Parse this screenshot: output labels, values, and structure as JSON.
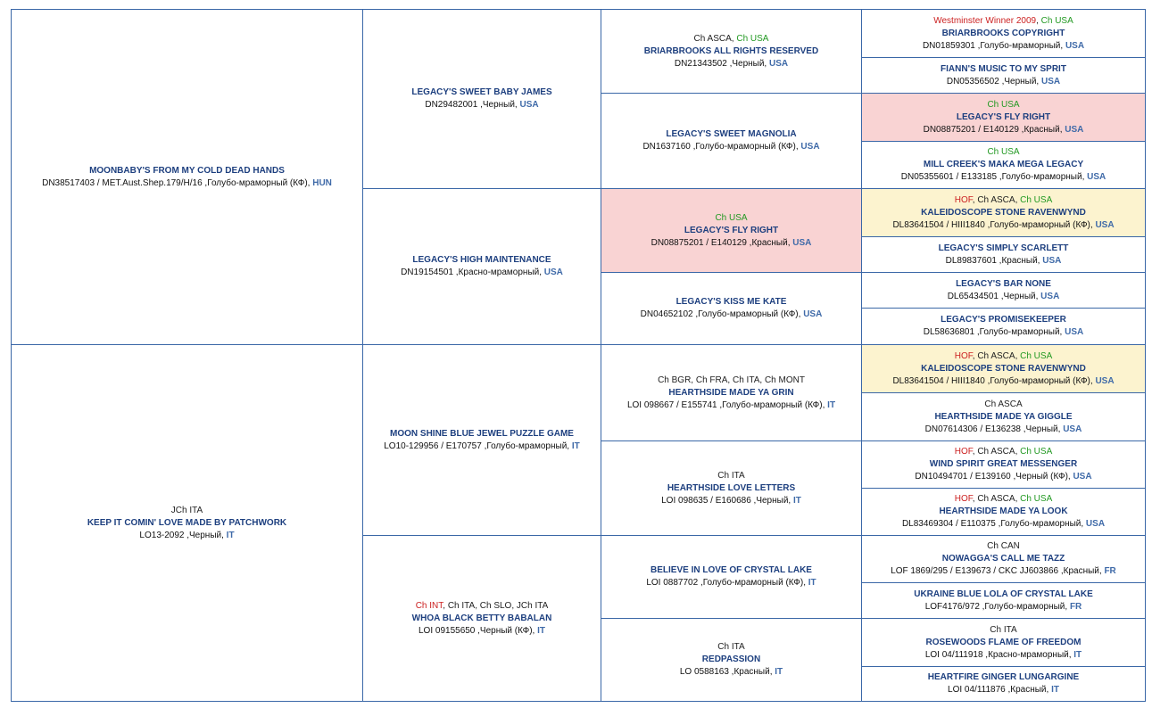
{
  "dogs": {
    "g1_1": {
      "titles": [],
      "name": "MOONBABY'S FROM MY COLD DEAD HANDS",
      "reg": "DN38517403 / MET.Aust.Shep.179/H/16 ,Голубо-мраморный (КФ), ",
      "country": "HUN"
    },
    "g1_2": {
      "titles": [
        {
          "t": "JCh ITA",
          "c": "black"
        }
      ],
      "name": "KEEP IT COMIN' LOVE MADE BY PATCHWORK",
      "reg": "LO13-2092 ,Черный, ",
      "country": "IT"
    },
    "g2_1": {
      "titles": [],
      "name": "LEGACY'S SWEET BABY JAMES",
      "reg": "DN29482001 ,Черный, ",
      "country": "USA"
    },
    "g2_2": {
      "titles": [],
      "name": "LEGACY'S HIGH MAINTENANCE",
      "reg": "DN19154501 ,Красно-мраморный, ",
      "country": "USA"
    },
    "g2_3": {
      "titles": [],
      "name": "MOON SHINE BLUE JEWEL PUZZLE GAME",
      "reg": "LO10-129956 / E170757 ,Голубо-мраморный, ",
      "country": "IT"
    },
    "g2_4": {
      "titles": [
        {
          "t": "Ch INT",
          "c": "red"
        },
        {
          "t": "Ch ITA",
          "c": "black"
        },
        {
          "t": "Ch SLO",
          "c": "black"
        },
        {
          "t": "JCh ITA",
          "c": "black"
        }
      ],
      "name": "WHOA BLACK BETTY BABALAN",
      "reg": "LOI 09155650 ,Черный (КФ), ",
      "country": "IT"
    },
    "g3_1": {
      "titles": [
        {
          "t": "Ch ASCA",
          "c": "black"
        },
        {
          "t": "Ch USA",
          "c": "green"
        }
      ],
      "name": "BRIARBROOKS ALL RIGHTS RESERVED",
      "reg": "DN21343502 ,Черный, ",
      "country": "USA"
    },
    "g3_2": {
      "titles": [],
      "name": "LEGACY'S SWEET MAGNOLIA",
      "reg": "DN1637160 ,Голубо-мраморный (КФ), ",
      "country": "USA"
    },
    "g3_3": {
      "titles": [
        {
          "t": "Ch USA",
          "c": "green"
        }
      ],
      "name": "LEGACY'S FLY RIGHT",
      "reg": "DN08875201 / E140129 ,Красный, ",
      "country": "USA"
    },
    "g3_4": {
      "titles": [],
      "name": "LEGACY'S KISS ME KATE",
      "reg": "DN04652102 ,Голубо-мраморный (КФ), ",
      "country": "USA"
    },
    "g3_5": {
      "titles": [
        {
          "t": "Ch BGR",
          "c": "black"
        },
        {
          "t": "Ch FRA",
          "c": "black"
        },
        {
          "t": "Ch ITA",
          "c": "black"
        },
        {
          "t": "Ch MONT",
          "c": "black"
        }
      ],
      "name": "HEARTHSIDE MADE YA GRIN",
      "reg": "LOI 098667 / E155741 ,Голубо-мраморный (КФ), ",
      "country": "IT"
    },
    "g3_6": {
      "titles": [
        {
          "t": "Ch ITA",
          "c": "black"
        }
      ],
      "name": "HEARTHSIDE LOVE LETTERS",
      "reg": "LOI 098635 / E160686 ,Черный, ",
      "country": "IT"
    },
    "g3_7": {
      "titles": [],
      "name": "BELIEVE IN LOVE OF CRYSTAL LAKE",
      "reg": "LOI 0887702 ,Голубо-мраморный (КФ), ",
      "country": "IT"
    },
    "g3_8": {
      "titles": [
        {
          "t": "Ch ITA",
          "c": "black"
        }
      ],
      "name": "REDPASSION",
      "reg": "LO 0588163 ,Красный, ",
      "country": "IT"
    },
    "g4_1": {
      "titles": [
        {
          "t": "Westminster Winner 2009",
          "c": "red"
        },
        {
          "t": "Ch USA",
          "c": "green"
        }
      ],
      "name": "BRIARBROOKS COPYRIGHT",
      "reg": "DN01859301 ,Голубо-мраморный, ",
      "country": "USA"
    },
    "g4_2": {
      "titles": [],
      "name": "FIANN'S MUSIC TO MY SPRIT",
      "reg": "DN05356502 ,Черный, ",
      "country": "USA"
    },
    "g4_3": {
      "titles": [
        {
          "t": "Ch USA",
          "c": "green"
        }
      ],
      "name": "LEGACY'S FLY RIGHT",
      "reg": "DN08875201 / E140129 ,Красный, ",
      "country": "USA"
    },
    "g4_4": {
      "titles": [
        {
          "t": "Ch USA",
          "c": "green"
        }
      ],
      "name": "MILL CREEK'S MAKA MEGA LEGACY",
      "reg": "DN05355601 / E133185 ,Голубо-мраморный, ",
      "country": "USA"
    },
    "g4_5": {
      "titles": [
        {
          "t": "HOF",
          "c": "red"
        },
        {
          "t": "Ch ASCA",
          "c": "black"
        },
        {
          "t": "Ch USA",
          "c": "green"
        }
      ],
      "name": "KALEIDOSCOPE STONE RAVENWYND",
      "reg": "DL83641504 / HIII1840 ,Голубо-мраморный (КФ), ",
      "country": "USA"
    },
    "g4_6": {
      "titles": [],
      "name": "LEGACY'S SIMPLY SCARLETT",
      "reg": "DL89837601 ,Красный, ",
      "country": "USA"
    },
    "g4_7": {
      "titles": [],
      "name": "LEGACY'S BAR NONE",
      "reg": "DL65434501 ,Черный, ",
      "country": "USA"
    },
    "g4_8": {
      "titles": [],
      "name": "LEGACY'S PROMISEKEEPER",
      "reg": "DL58636801 ,Голубо-мраморный, ",
      "country": "USA"
    },
    "g4_9": {
      "titles": [
        {
          "t": "HOF",
          "c": "red"
        },
        {
          "t": "Ch ASCA",
          "c": "black"
        },
        {
          "t": "Ch USA",
          "c": "green"
        }
      ],
      "name": "KALEIDOSCOPE STONE RAVENWYND",
      "reg": "DL83641504 / HIII1840 ,Голубо-мраморный (КФ), ",
      "country": "USA"
    },
    "g4_10": {
      "titles": [
        {
          "t": "Ch ASCA",
          "c": "black"
        }
      ],
      "name": "HEARTHSIDE MADE YA GIGGLE",
      "reg": "DN07614306 / E136238 ,Черный, ",
      "country": "USA"
    },
    "g4_11": {
      "titles": [
        {
          "t": "HOF",
          "c": "red"
        },
        {
          "t": "Ch ASCA",
          "c": "black"
        },
        {
          "t": "Ch USA",
          "c": "green"
        }
      ],
      "name": "WIND SPIRIT GREAT MESSENGER",
      "reg": "DN10494701 / E139160 ,Черный (КФ), ",
      "country": "USA"
    },
    "g4_12": {
      "titles": [
        {
          "t": "HOF",
          "c": "red"
        },
        {
          "t": "Ch ASCA",
          "c": "black"
        },
        {
          "t": "Ch USA",
          "c": "green"
        }
      ],
      "name": "HEARTHSIDE MADE YA LOOK",
      "reg": "DL83469304 / E110375 ,Голубо-мраморный, ",
      "country": "USA"
    },
    "g4_13": {
      "titles": [
        {
          "t": "Ch CAN",
          "c": "black"
        }
      ],
      "name": "NOWAGGA'S CALL ME TAZZ",
      "reg": "LOF 1869/295 / E139673 / CKC JJ603866 ,Красный, ",
      "country": "FR"
    },
    "g4_14": {
      "titles": [],
      "name": "UKRAINE BLUE LOLA OF CRYSTAL LAKE",
      "reg": "LOF4176/972 ,Голубо-мраморный, ",
      "country": "FR"
    },
    "g4_15": {
      "titles": [
        {
          "t": "Ch ITA",
          "c": "black"
        }
      ],
      "name": "ROSEWOODS FLAME OF FREEDOM",
      "reg": "LOI 04/111918 ,Красно-мраморный, ",
      "country": "IT"
    },
    "g4_16": {
      "titles": [],
      "name": "HEARTFIRE GINGER LUNGARGINE",
      "reg": "LOI 04/111876 ,Красный, ",
      "country": "IT"
    }
  },
  "colors": {
    "border": "#3a67a7",
    "name": "#1d3f7f",
    "country": "#3f6aa8",
    "highlight_red": "#f9d3d3",
    "highlight_yellow": "#fcf3cf",
    "title_red": "#cc2222",
    "title_green": "#229922"
  }
}
